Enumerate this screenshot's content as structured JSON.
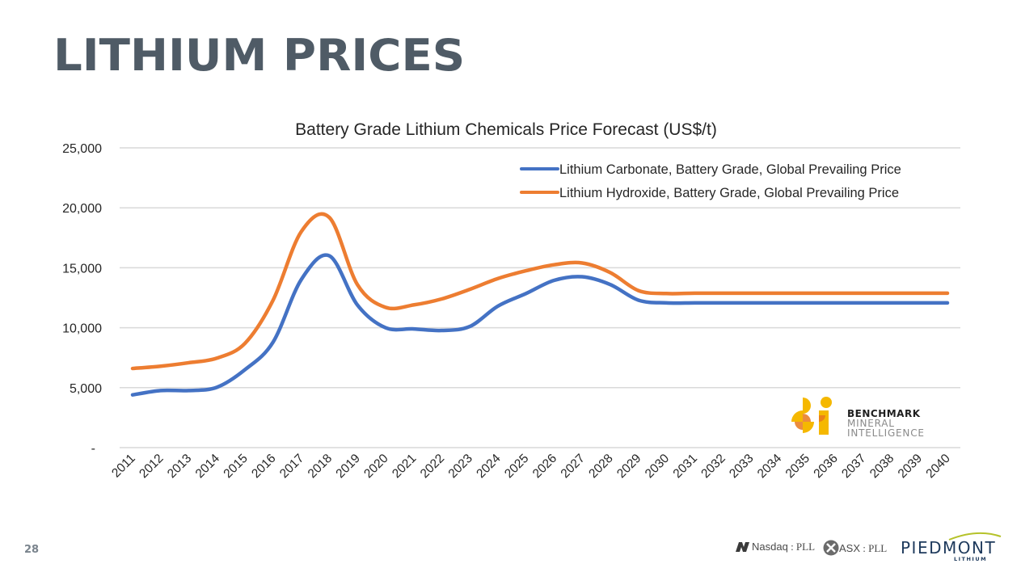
{
  "slide": {
    "title": "LITHIUM PRICES",
    "page_number": "28"
  },
  "footer": {
    "nasdaq_exchange": "Nasdaq",
    "nasdaq_ticker": " : PLL",
    "asx_exchange": "ASX",
    "asx_ticker": " : PLL",
    "brand_name": "PIEDMONT",
    "brand_sub": "LITHIUM"
  },
  "source_logo": {
    "line1": "BENCHMARK",
    "line2": "MINERAL",
    "line3": "INTELLIGENCE"
  },
  "colors": {
    "carbonate": "#4472c4",
    "hydroxide": "#ed7d31",
    "title": "#4f5b66",
    "grid": "#d9d9d9"
  },
  "chart_data": {
    "type": "line",
    "title": "Battery Grade Lithium Chemicals Price Forecast (US$/t)",
    "xlabel": "",
    "ylabel": "",
    "ylim": [
      0,
      25000
    ],
    "yticks": [
      0,
      5000,
      10000,
      15000,
      20000,
      25000
    ],
    "ytick_labels": [
      "-",
      "5,000",
      "10,000",
      "15,000",
      "20,000",
      "25,000"
    ],
    "grid": true,
    "legend_position": "top-right",
    "smooth": true,
    "categories": [
      "2011",
      "2012",
      "2013",
      "2014",
      "2015",
      "2016",
      "2017",
      "2018",
      "2019",
      "2020",
      "2021",
      "2022",
      "2023",
      "2024",
      "2025",
      "2026",
      "2027",
      "2028",
      "2029",
      "2030",
      "2031",
      "2032",
      "2033",
      "2034",
      "2035",
      "2036",
      "2037",
      "2038",
      "2039",
      "2040"
    ],
    "series": [
      {
        "name": "Lithium Carbonate, Battery Grade, Global Prevailing Price",
        "color": "#4472c4",
        "values": [
          4400,
          4760,
          4760,
          5030,
          6500,
          8800,
          14000,
          16000,
          11900,
          10000,
          9900,
          9770,
          10100,
          11800,
          12850,
          13950,
          14250,
          13600,
          12300,
          12070,
          12070,
          12070,
          12070,
          12070,
          12070,
          12070,
          12070,
          12070,
          12070,
          12070
        ]
      },
      {
        "name": "Lithium Hydroxide, Battery Grade, Global Prevailing Price",
        "color": "#ed7d31",
        "values": [
          6600,
          6790,
          7080,
          7460,
          8700,
          12300,
          18000,
          19200,
          13600,
          11700,
          11900,
          12400,
          13200,
          14100,
          14750,
          15250,
          15400,
          14600,
          13100,
          12850,
          12880,
          12880,
          12880,
          12880,
          12880,
          12880,
          12880,
          12880,
          12880,
          12880
        ]
      }
    ]
  }
}
